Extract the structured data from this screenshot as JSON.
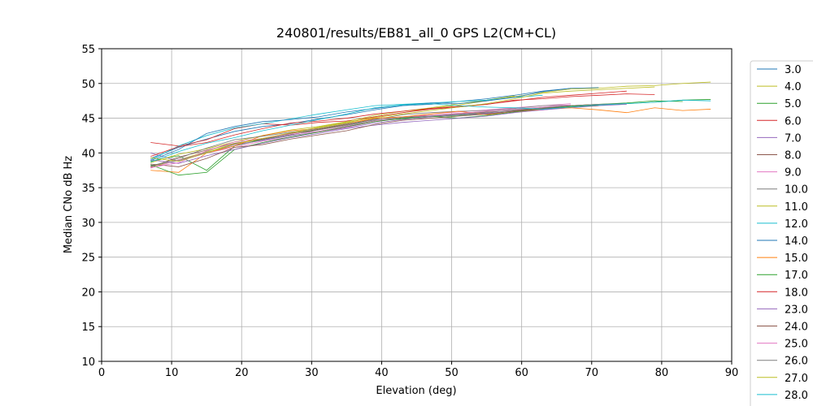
{
  "chart_data": {
    "type": "line",
    "title": "240801/results/EB81_all_0 GPS L2(CM+CL)",
    "xlabel": "Elevation (deg)",
    "ylabel": "Median CNo dB Hz",
    "xlim": [
      0,
      90
    ],
    "ylim": [
      10,
      55
    ],
    "xticks": [
      0,
      10,
      20,
      30,
      40,
      50,
      60,
      70,
      80,
      90
    ],
    "yticks": [
      10,
      15,
      20,
      25,
      30,
      35,
      40,
      45,
      50,
      55
    ],
    "grid": true,
    "legend": "right",
    "x": [
      7,
      11,
      15,
      19,
      23,
      27,
      31,
      35,
      39,
      43,
      47,
      51,
      55,
      59,
      63,
      67,
      71,
      75,
      79,
      83,
      87
    ],
    "series": [
      {
        "name": "3.0",
        "color": "#1f77b4",
        "values": [
          39.2,
          40.8,
          42.0,
          43.1,
          43.8,
          44.2,
          44.9,
          45.5,
          46.2,
          46.8,
          47.0,
          47.4,
          47.8,
          48.3,
          48.9,
          49.3,
          49.4,
          null,
          null,
          null,
          null
        ]
      },
      {
        "name": "4.0",
        "color": "#bcbd22",
        "values": [
          38.0,
          39.0,
          40.2,
          41.3,
          42.0,
          42.8,
          43.6,
          44.3,
          45.2,
          45.8,
          46.4,
          46.9,
          47.5,
          48.1,
          48.7,
          49.2,
          49.3,
          49.6,
          49.7,
          50.0,
          50.2
        ]
      },
      {
        "name": "5.0",
        "color": "#2ca02c",
        "values": [
          38.8,
          39.6,
          37.5,
          41.0,
          42.0,
          42.6,
          43.4,
          44.0,
          44.6,
          44.9,
          45.2,
          45.4,
          45.7,
          46.0,
          46.4,
          46.7,
          46.9,
          47.1,
          47.3,
          47.6,
          47.7
        ]
      },
      {
        "name": "6.0",
        "color": "#d62728",
        "values": [
          41.5,
          41.0,
          41.9,
          43.5,
          44.2,
          44.0,
          44.4,
          44.6,
          45.2,
          45.8,
          46.3,
          46.6,
          47.0,
          47.6,
          47.8,
          48.1,
          48.3,
          48.5,
          48.4,
          null,
          null
        ]
      },
      {
        "name": "7.0",
        "color": "#9467bd",
        "values": [
          40.0,
          38.8,
          40.0,
          41.2,
          41.8,
          42.5,
          43.0,
          43.6,
          44.3,
          44.8,
          45.2,
          45.5,
          45.7,
          46.0,
          46.2,
          46.5,
          46.8,
          47.0,
          null,
          null,
          null
        ]
      },
      {
        "name": "8.0",
        "color": "#8c564b",
        "values": [
          38.0,
          39.4,
          40.4,
          41.4,
          42.0,
          42.8,
          43.4,
          44.1,
          44.9,
          45.2,
          45.4,
          45.6,
          45.9,
          46.1,
          46.5,
          46.8,
          47.0,
          null,
          null,
          null,
          null
        ]
      },
      {
        "name": "9.0",
        "color": "#e377c2",
        "values": [
          37.8,
          39.0,
          40.0,
          40.8,
          41.7,
          42.3,
          43.0,
          43.7,
          44.5,
          45.0,
          45.6,
          45.9,
          46.2,
          46.5,
          46.8,
          47.1,
          null,
          null,
          null,
          null,
          null
        ]
      },
      {
        "name": "10.0",
        "color": "#7f7f7f",
        "values": [
          38.2,
          38.9,
          40.1,
          41.0,
          41.9,
          42.6,
          43.3,
          44.0,
          44.8,
          45.5,
          45.8,
          46.0,
          46.1,
          46.4,
          46.8,
          46.9,
          null,
          null,
          null,
          null,
          null
        ]
      },
      {
        "name": "11.0",
        "color": "#bcbd22",
        "values": [
          38.6,
          39.8,
          40.6,
          41.6,
          42.5,
          43.3,
          43.8,
          44.5,
          45.4,
          46.0,
          46.5,
          47.1,
          47.6,
          48.2,
          null,
          null,
          null,
          null,
          null,
          null,
          null
        ]
      },
      {
        "name": "12.0",
        "color": "#17becf",
        "values": [
          39.0,
          41.0,
          42.5,
          43.6,
          44.2,
          44.9,
          45.6,
          46.2,
          46.8,
          47.0,
          47.2,
          47.4,
          47.6,
          48.0,
          48.3,
          null,
          null,
          null,
          null,
          null,
          null
        ]
      },
      {
        "name": "14.0",
        "color": "#1f77b4",
        "values": [
          38.9,
          40.5,
          42.8,
          43.8,
          44.5,
          44.8,
          45.2,
          45.9,
          46.4,
          46.9,
          47.2,
          47.1,
          47.5,
          48.0,
          48.8,
          49.3,
          null,
          null,
          null,
          null,
          null
        ]
      },
      {
        "name": "15.0",
        "color": "#ff7f0e",
        "values": [
          37.5,
          37.2,
          40.0,
          41.0,
          42.5,
          43.2,
          43.5,
          44.2,
          45.0,
          45.2,
          45.6,
          46.0,
          45.5,
          45.9,
          46.3,
          46.5,
          46.2,
          45.8,
          46.5,
          46.1,
          46.3
        ]
      },
      {
        "name": "17.0",
        "color": "#2ca02c",
        "values": [
          38.3,
          36.8,
          37.2,
          40.5,
          41.5,
          42.3,
          43.0,
          43.8,
          44.5,
          45.0,
          45.3,
          45.0,
          45.4,
          45.9,
          46.4,
          46.8,
          47.0,
          47.2,
          47.5,
          47.4,
          null
        ]
      },
      {
        "name": "18.0",
        "color": "#d62728",
        "values": [
          39.5,
          40.9,
          41.5,
          42.6,
          43.5,
          44.3,
          44.6,
          45.0,
          45.6,
          46.0,
          46.4,
          46.7,
          47.0,
          47.5,
          48.0,
          48.3,
          48.6,
          48.9,
          null,
          null,
          null
        ]
      },
      {
        "name": "23.0",
        "color": "#9467bd",
        "values": [
          39.0,
          38.5,
          39.6,
          40.5,
          41.4,
          42.2,
          42.8,
          43.5,
          44.0,
          44.4,
          44.7,
          45.0,
          45.3,
          45.8,
          46.2,
          46.6,
          46.9,
          null,
          null,
          null,
          null
        ]
      },
      {
        "name": "24.0",
        "color": "#8c564b",
        "values": [
          38.4,
          38.0,
          39.2,
          40.8,
          41.2,
          42.0,
          42.6,
          43.2,
          44.1,
          44.7,
          45.0,
          45.3,
          45.6,
          46.0,
          46.4,
          46.6,
          46.8,
          null,
          null,
          null,
          null
        ]
      },
      {
        "name": "25.0",
        "color": "#e377c2",
        "values": [
          37.9,
          38.6,
          40.3,
          41.6,
          42.1,
          42.7,
          43.1,
          43.9,
          44.6,
          45.1,
          45.4,
          45.7,
          46.0,
          46.3,
          46.6,
          46.9,
          null,
          null,
          null,
          null,
          null
        ]
      },
      {
        "name": "26.0",
        "color": "#7f7f7f",
        "values": [
          38.1,
          39.2,
          40.7,
          41.9,
          42.4,
          43.0,
          43.5,
          44.2,
          44.7,
          45.1,
          45.3,
          45.6,
          45.8,
          46.2,
          46.5,
          46.8,
          47.0,
          47.1,
          null,
          null,
          null
        ]
      },
      {
        "name": "27.0",
        "color": "#bcbd22",
        "values": [
          39.3,
          38.8,
          40.0,
          41.3,
          42.1,
          42.9,
          43.7,
          44.4,
          45.1,
          45.6,
          46.1,
          46.6,
          47.1,
          47.8,
          48.6,
          48.9,
          49.1,
          49.3,
          49.5,
          null,
          null
        ]
      },
      {
        "name": "28.0",
        "color": "#17becf",
        "values": [
          38.7,
          40.2,
          41.4,
          42.2,
          43.2,
          44.0,
          44.8,
          45.6,
          46.5,
          46.9,
          47.1,
          46.8,
          46.6,
          46.5,
          46.3,
          46.6,
          46.9,
          47.1,
          47.3,
          47.6,
          47.5
        ]
      }
    ]
  }
}
